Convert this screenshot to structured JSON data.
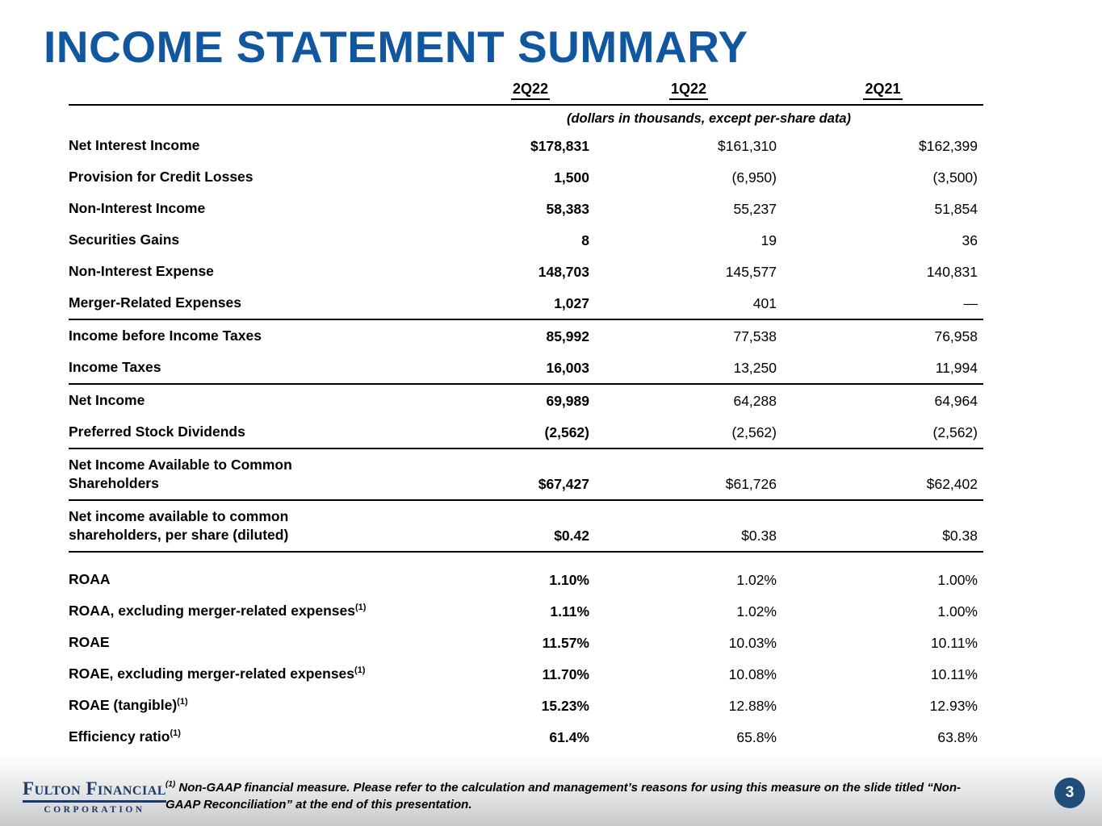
{
  "title": "INCOME STATEMENT SUMMARY",
  "table": {
    "columns": [
      "2Q22",
      "1Q22",
      "2Q21"
    ],
    "units_note": "(dollars in thousands, except per-share data)",
    "rows": [
      {
        "label": "Net Interest Income",
        "values": [
          "$178,831",
          "$161,310",
          "$162,399"
        ]
      },
      {
        "label": "Provision for Credit Losses",
        "values": [
          "1,500",
          "(6,950)",
          "(3,500)"
        ]
      },
      {
        "label": "Non-Interest Income",
        "values": [
          "58,383",
          "55,237",
          "51,854"
        ]
      },
      {
        "label": "Securities Gains",
        "values": [
          "8",
          "19",
          "36"
        ]
      },
      {
        "label": "Non-Interest Expense",
        "values": [
          "148,703",
          "145,577",
          "140,831"
        ]
      },
      {
        "label": "Merger-Related Expenses",
        "values": [
          "1,027",
          "401",
          "—"
        ],
        "rule_below": true
      },
      {
        "label": "Income before Income Taxes",
        "values": [
          "85,992",
          "77,538",
          "76,958"
        ]
      },
      {
        "label": "Income Taxes",
        "values": [
          "16,003",
          "13,250",
          "11,994"
        ],
        "rule_below": true
      },
      {
        "label": "Net Income",
        "values": [
          "69,989",
          "64,288",
          "64,964"
        ]
      },
      {
        "label": "Preferred Stock Dividends",
        "values": [
          "(2,562)",
          "(2,562)",
          "(2,562)"
        ],
        "rule_below": true
      },
      {
        "label": "Net Income Available to Common\nShareholders",
        "values": [
          "$67,427",
          "$61,726",
          "$62,402"
        ],
        "rule_below": true
      },
      {
        "label": "Net income available to common\nshareholders, per share (diluted)",
        "values": [
          "$0.42",
          "$0.38",
          "$0.38"
        ],
        "rule_below": true
      },
      {
        "label": "ROAA",
        "values": [
          "1.10%",
          "1.02%",
          "1.00%"
        ],
        "gap_above": true
      },
      {
        "label": "ROAA, excluding merger-related expenses",
        "sup": "(1)",
        "values": [
          "1.11%",
          "1.02%",
          "1.00%"
        ]
      },
      {
        "label": "ROAE",
        "values": [
          "11.57%",
          "10.03%",
          "10.11%"
        ]
      },
      {
        "label": "ROAE, excluding merger-related expenses",
        "sup": "(1)",
        "values": [
          "11.70%",
          "10.08%",
          "10.11%"
        ]
      },
      {
        "label": "ROAE (tangible)",
        "sup": "(1)",
        "values": [
          "15.23%",
          "12.88%",
          "12.93%"
        ]
      },
      {
        "label": "Efficiency ratio",
        "sup": "(1)",
        "values": [
          "61.4%",
          "65.8%",
          "63.8%"
        ]
      }
    ]
  },
  "footnote": {
    "marker": "(1)",
    "text": " Non-GAAP financial measure.  Please refer to the calculation and management’s reasons for using this measure on the slide titled “Non-GAAP Reconciliation” at the end of this presentation."
  },
  "logo": {
    "line1": "Fulton Financial",
    "line2": "CORPORATION"
  },
  "page_number": "3",
  "colors": {
    "title_blue": "#10579f",
    "badge_navy": "#1F4E79",
    "logo_navy": "#203864"
  }
}
